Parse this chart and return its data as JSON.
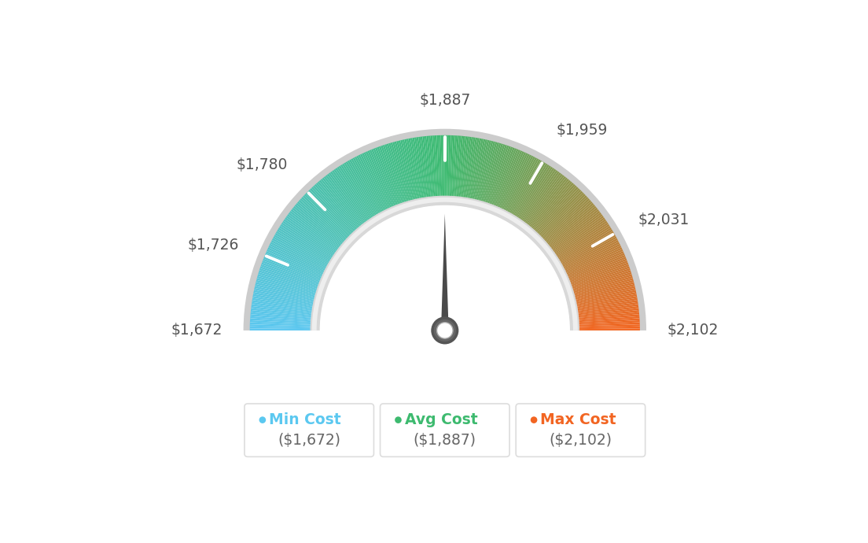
{
  "min_val": 1672,
  "avg_val": 1887,
  "max_val": 2102,
  "tick_labels": [
    "$1,672",
    "$1,726",
    "$1,780",
    "$1,887",
    "$1,959",
    "$2,031",
    "$2,102"
  ],
  "tick_values": [
    1672,
    1726,
    1780,
    1887,
    1959,
    2031,
    2102
  ],
  "legend_labels": [
    "Min Cost",
    "Avg Cost",
    "Max Cost"
  ],
  "legend_values": [
    "($1,672)",
    "($1,887)",
    "($2,102)"
  ],
  "legend_colors": [
    "#5bc8f0",
    "#3dba6f",
    "#f26522"
  ],
  "bg_color": "#ffffff",
  "needle_value": 1887,
  "colors_blue": [
    0.36,
    0.78,
    0.94
  ],
  "colors_green": [
    0.24,
    0.73,
    0.44
  ],
  "colors_orange": [
    0.95,
    0.4,
    0.13
  ]
}
